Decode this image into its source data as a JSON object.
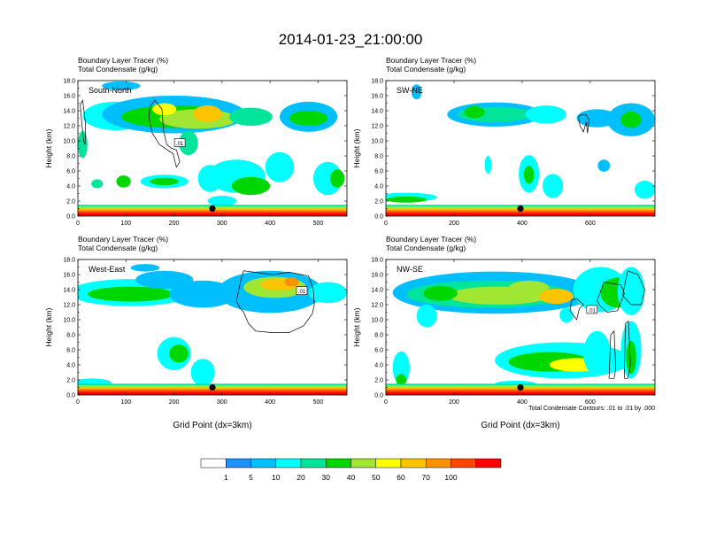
{
  "title": "2014-01-23_21:00:00",
  "panel_label_line1": "Boundary Layer Tracer   (%)",
  "panel_label_line2": "Total Condensate   (g/kg)",
  "y_axis_label": "Height (km)",
  "x_axis_label": "Grid Point (dx=3km)",
  "contour_note": "Total Condensate Contours: .01 to .01 by .000",
  "chart_data": [
    {
      "type": "heatmap",
      "name": "South-North",
      "xlim": [
        0,
        560
      ],
      "ylim": [
        0,
        18
      ],
      "xticks": [
        0,
        100,
        200,
        300,
        400,
        500
      ],
      "yticks": [
        "0.0",
        "2.0",
        "4.0",
        "6.0",
        "8.0",
        "10.0",
        "12.0",
        "14.0",
        "16.0",
        "18.0"
      ],
      "marker": {
        "x": 280,
        "y": 1.0
      },
      "contour_label": ".01"
    },
    {
      "type": "heatmap",
      "name": "SW-NE",
      "xlim": [
        0,
        790
      ],
      "ylim": [
        0,
        18
      ],
      "xticks": [
        0,
        200,
        400,
        600
      ],
      "yticks": [
        "0.0",
        "2.0",
        "4.0",
        "6.0",
        "8.0",
        "10.0",
        "12.0",
        "14.0",
        "16.0",
        "18.0"
      ],
      "marker": {
        "x": 395,
        "y": 1.0
      }
    },
    {
      "type": "heatmap",
      "name": "West-East",
      "xlim": [
        0,
        560
      ],
      "ylim": [
        0,
        18
      ],
      "xticks": [
        0,
        100,
        200,
        300,
        400,
        500
      ],
      "yticks": [
        "0.0",
        "2.0",
        "4.0",
        "6.0",
        "8.0",
        "10.0",
        "12.0",
        "14.0",
        "16.0",
        "18.0"
      ],
      "marker": {
        "x": 280,
        "y": 1.0
      },
      "contour_label": ".01"
    },
    {
      "type": "heatmap",
      "name": "NW-SE",
      "xlim": [
        0,
        790
      ],
      "ylim": [
        0,
        18
      ],
      "xticks": [
        0,
        200,
        400,
        600
      ],
      "yticks": [
        "0.0",
        "2.0",
        "4.0",
        "6.0",
        "8.0",
        "10.0",
        "12.0",
        "14.0",
        "16.0",
        "18.0"
      ],
      "marker": {
        "x": 395,
        "y": 1.0
      },
      "contour_label": ".01"
    }
  ],
  "colorbar": {
    "labels": [
      "1",
      "5",
      "10",
      "20",
      "30",
      "40",
      "50",
      "60",
      "70",
      "100"
    ],
    "colors": [
      "#ffffff",
      "#1e90ff",
      "#00bfff",
      "#00ffff",
      "#00e59a",
      "#00d700",
      "#a0e632",
      "#ffff00",
      "#ffc400",
      "#ff9100",
      "#ff4600",
      "#ff0000"
    ]
  }
}
